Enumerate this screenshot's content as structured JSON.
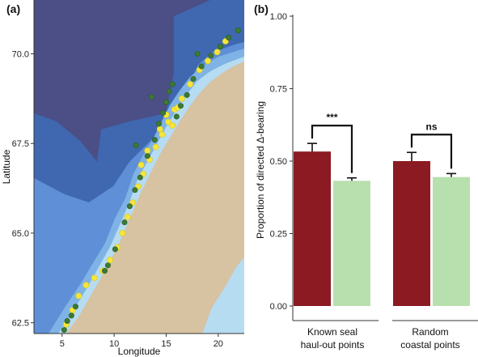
{
  "panels": {
    "a": "(a)",
    "b": "(b)"
  },
  "chart_data": [
    {
      "type": "scatter",
      "xlabel": "Longitude",
      "ylabel": "Latitude",
      "xticks": [
        "5",
        "10",
        "15",
        "20"
      ],
      "yticks": [
        "62.5",
        "65.0",
        "67.5",
        "70.0"
      ],
      "xlim": [
        2.3,
        22.5
      ],
      "ylim": [
        62.2,
        71.5
      ],
      "colors": {
        "deep": "#4b4f86",
        "mid": "#3f68b0",
        "slope": "#5f8fd6",
        "shelf": "#7fb3e6",
        "shallow": "#b6dcf2",
        "land": "#d7c2a2",
        "yellow_points": "#f5e63a",
        "green_points": "#3c7a33"
      },
      "series": [
        {
          "values": [
            [
              5.4,
              62.45
            ],
            [
              6.0,
              62.85
            ],
            [
              6.6,
              63.25
            ],
            [
              7.3,
              63.55
            ],
            [
              8.1,
              63.75
            ],
            [
              8.9,
              63.95
            ],
            [
              9.6,
              64.25
            ],
            [
              10.3,
              64.6
            ],
            [
              10.8,
              65.0
            ],
            [
              11.3,
              65.45
            ],
            [
              11.8,
              65.85
            ],
            [
              12.3,
              66.3
            ],
            [
              12.8,
              66.65
            ],
            [
              13.4,
              67.05
            ],
            [
              14.0,
              67.4
            ],
            [
              14.6,
              67.75
            ],
            [
              15.2,
              68.1
            ],
            [
              15.8,
              68.45
            ],
            [
              16.5,
              68.75
            ],
            [
              17.3,
              69.15
            ],
            [
              18.2,
              69.55
            ],
            [
              19.0,
              69.8
            ],
            [
              19.9,
              70.05
            ],
            [
              20.7,
              70.35
            ],
            [
              15.0,
              68.3
            ],
            [
              15.6,
              68.0
            ],
            [
              16.1,
              68.5
            ],
            [
              14.4,
              67.9
            ],
            [
              13.2,
              67.3
            ],
            [
              12.6,
              66.9
            ]
          ]
        },
        {
          "values": [
            [
              5.2,
              62.3
            ],
            [
              5.5,
              62.55
            ],
            [
              5.9,
              62.7
            ],
            [
              6.3,
              62.95
            ],
            [
              9.1,
              63.95
            ],
            [
              9.4,
              64.1
            ],
            [
              10.1,
              64.55
            ],
            [
              11.0,
              65.3
            ],
            [
              11.5,
              65.75
            ],
            [
              12.0,
              66.2
            ],
            [
              12.5,
              66.55
            ],
            [
              12.1,
              67.45
            ],
            [
              13.2,
              67.15
            ],
            [
              13.9,
              67.6
            ],
            [
              14.3,
              68.05
            ],
            [
              14.7,
              68.35
            ],
            [
              15.0,
              68.65
            ],
            [
              15.3,
              68.95
            ],
            [
              15.6,
              69.15
            ],
            [
              16.0,
              68.25
            ],
            [
              16.4,
              68.55
            ],
            [
              17.0,
              68.85
            ],
            [
              17.6,
              69.3
            ],
            [
              18.4,
              69.65
            ],
            [
              19.3,
              69.95
            ],
            [
              20.2,
              70.2
            ],
            [
              21.0,
              70.45
            ],
            [
              21.9,
              70.65
            ],
            [
              18.0,
              70.0
            ],
            [
              13.6,
              68.8
            ]
          ]
        }
      ]
    },
    {
      "type": "bar",
      "ylabel": "Proportion of directed Δ-bearing",
      "ylim": [
        0,
        1.0
      ],
      "yticks": [
        "0.00",
        "0.25",
        "0.50",
        "0.75",
        "1.00"
      ],
      "groups": [
        {
          "label_lines": [
            "Known seal",
            "haul-out points"
          ],
          "values": [
            0.533,
            0.432
          ],
          "errors": [
            0.028,
            0.01
          ],
          "significance": "***"
        },
        {
          "label_lines": [
            "Random",
            "coastal points"
          ],
          "values": [
            0.5,
            0.445
          ],
          "errors": [
            0.03,
            0.012
          ],
          "significance": "ns"
        }
      ],
      "colors": [
        "#8b1a22",
        "#b8dfae"
      ],
      "grid": false
    }
  ]
}
